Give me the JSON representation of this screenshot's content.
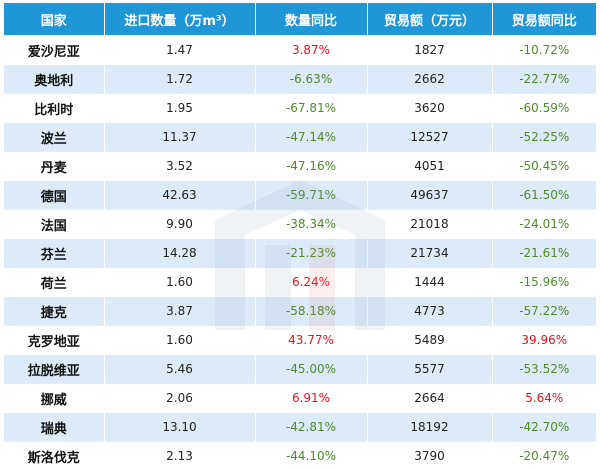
{
  "table": {
    "headers": [
      "国家",
      "进口数量（万m³）",
      "数量同比",
      "贸易额（万元）",
      "贸易额同比"
    ],
    "rows": [
      {
        "country": "爱沙尼亚",
        "qty": "1.47",
        "qty_yoy": "3.87%",
        "qty_yoy_dir": "up",
        "trade": "1827",
        "trade_yoy": "-10.72%",
        "trade_yoy_dir": "down"
      },
      {
        "country": "奥地利",
        "qty": "1.72",
        "qty_yoy": "-6.63%",
        "qty_yoy_dir": "down",
        "trade": "2662",
        "trade_yoy": "-22.77%",
        "trade_yoy_dir": "down"
      },
      {
        "country": "比利时",
        "qty": "1.95",
        "qty_yoy": "-67.81%",
        "qty_yoy_dir": "down",
        "trade": "3620",
        "trade_yoy": "-60.59%",
        "trade_yoy_dir": "down"
      },
      {
        "country": "波兰",
        "qty": "11.37",
        "qty_yoy": "-47.14%",
        "qty_yoy_dir": "down",
        "trade": "12527",
        "trade_yoy": "-52.25%",
        "trade_yoy_dir": "down"
      },
      {
        "country": "丹麦",
        "qty": "3.52",
        "qty_yoy": "-47.16%",
        "qty_yoy_dir": "down",
        "trade": "4051",
        "trade_yoy": "-50.45%",
        "trade_yoy_dir": "down"
      },
      {
        "country": "德国",
        "qty": "42.63",
        "qty_yoy": "-59.71%",
        "qty_yoy_dir": "down",
        "trade": "49637",
        "trade_yoy": "-61.50%",
        "trade_yoy_dir": "down"
      },
      {
        "country": "法国",
        "qty": "9.90",
        "qty_yoy": "-38.34%",
        "qty_yoy_dir": "down",
        "trade": "21018",
        "trade_yoy": "-24.01%",
        "trade_yoy_dir": "down"
      },
      {
        "country": "芬兰",
        "qty": "14.28",
        "qty_yoy": "-21.23%",
        "qty_yoy_dir": "down",
        "trade": "21734",
        "trade_yoy": "-21.61%",
        "trade_yoy_dir": "down"
      },
      {
        "country": "荷兰",
        "qty": "1.60",
        "qty_yoy": "6.24%",
        "qty_yoy_dir": "up",
        "trade": "1444",
        "trade_yoy": "-15.96%",
        "trade_yoy_dir": "down"
      },
      {
        "country": "捷克",
        "qty": "3.87",
        "qty_yoy": "-58.18%",
        "qty_yoy_dir": "down",
        "trade": "4773",
        "trade_yoy": "-57.22%",
        "trade_yoy_dir": "down"
      },
      {
        "country": "克罗地亚",
        "qty": "1.60",
        "qty_yoy": "43.77%",
        "qty_yoy_dir": "up",
        "trade": "5489",
        "trade_yoy": "39.96%",
        "trade_yoy_dir": "up"
      },
      {
        "country": "拉脱维亚",
        "qty": "5.46",
        "qty_yoy": "-45.00%",
        "qty_yoy_dir": "down",
        "trade": "5577",
        "trade_yoy": "-53.52%",
        "trade_yoy_dir": "down"
      },
      {
        "country": "挪威",
        "qty": "2.06",
        "qty_yoy": "6.91%",
        "qty_yoy_dir": "up",
        "trade": "2664",
        "trade_yoy": "5.64%",
        "trade_yoy_dir": "up"
      },
      {
        "country": "瑞典",
        "qty": "13.10",
        "qty_yoy": "-42.81%",
        "qty_yoy_dir": "down",
        "trade": "18192",
        "trade_yoy": "-42.70%",
        "trade_yoy_dir": "down"
      },
      {
        "country": "斯洛伐克",
        "qty": "2.13",
        "qty_yoy": "-44.10%",
        "qty_yoy_dir": "down",
        "trade": "3790",
        "trade_yoy": "-20.47%",
        "trade_yoy_dir": "down"
      }
    ]
  },
  "colors": {
    "header_bg": "#1f97d6",
    "header_text": "#ffffff",
    "row_alt_bg": "#dcebf7",
    "increase": "#e0161f",
    "decrease": "#4e8a2e"
  },
  "watermark": {
    "icon": "logo-watermark-icon"
  }
}
